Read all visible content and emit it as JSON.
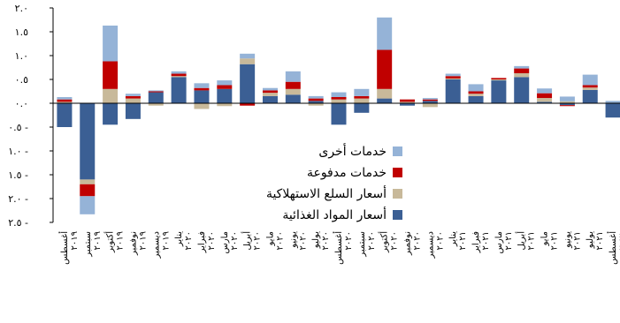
{
  "chart_data": {
    "type": "bar",
    "stacked": true,
    "categories": [
      [
        "أغسطس",
        "٢٠١٩"
      ],
      [
        "سبتمبر",
        "٢٠١٩"
      ],
      [
        "أكتوبر",
        "٢٠١٩"
      ],
      [
        "نوفمبر",
        "٢٠١٩"
      ],
      [
        "ديسمبر",
        "٢٠١٩"
      ],
      [
        "يناير",
        "٢٠٢٠"
      ],
      [
        "فبراير",
        "٢٠٢٠"
      ],
      [
        "مارس",
        "٢٠٢٠"
      ],
      [
        "أبريل",
        "٢٠٢٠"
      ],
      [
        "مايو",
        "٢٠٢٠"
      ],
      [
        "يونيو",
        "٢٠٢٠"
      ],
      [
        "يوليو",
        "٢٠٢٠"
      ],
      [
        "أغسطس",
        "٢٠٢٠"
      ],
      [
        "سبتمبر",
        "٢٠٢٠"
      ],
      [
        "أكتوبر",
        "٢٠٢٠"
      ],
      [
        "نوفمبر",
        "٢٠٢٠"
      ],
      [
        "ديسمبر",
        "٢٠٢٠"
      ],
      [
        "يناير",
        "٢٠٢١"
      ],
      [
        "فبراير",
        "٢٠٢١"
      ],
      [
        "مارس",
        "٢٠٢١"
      ],
      [
        "أبريل",
        "٢٠٢١"
      ],
      [
        "مايو",
        "٢٠٢١"
      ],
      [
        "يونيو",
        "٢٠٢١"
      ],
      [
        "يوليو",
        "٢٠٢١"
      ],
      [
        "أغسطس",
        "٢٠٢١"
      ]
    ],
    "series": [
      {
        "name": "أسعار المواد الغذائية",
        "color": "#3b5f94",
        "values": [
          -0.5,
          -1.6,
          -0.45,
          -0.33,
          0.23,
          0.55,
          0.27,
          0.3,
          0.82,
          0.15,
          0.18,
          0.05,
          -0.45,
          -0.2,
          0.1,
          -0.05,
          0.05,
          0.5,
          0.15,
          0.48,
          0.55,
          0.03,
          -0.04,
          0.28,
          -0.3
        ]
      },
      {
        "name": "أسعار السلع الاستهلاكية",
        "color": "#c8b99a",
        "values": [
          0.03,
          -0.1,
          0.3,
          0.1,
          -0.05,
          0.02,
          -0.12,
          -0.06,
          0.12,
          0.07,
          0.12,
          -0.05,
          0.08,
          0.1,
          0.2,
          0.03,
          -0.08,
          0.02,
          0.05,
          0.02,
          0.08,
          0.08,
          0.04,
          0.05,
          0.0
        ]
      },
      {
        "name": "خدمات مدفوعة",
        "color": "#c00000",
        "values": [
          0.05,
          -0.25,
          0.58,
          0.05,
          0.02,
          0.05,
          0.05,
          0.08,
          -0.05,
          0.05,
          0.15,
          0.05,
          0.05,
          0.05,
          0.82,
          0.05,
          0.03,
          0.05,
          0.05,
          0.03,
          0.1,
          0.1,
          -0.02,
          0.05,
          0.0
        ]
      },
      {
        "name": "خدمات أخرى",
        "color": "#95b3d7",
        "values": [
          0.05,
          -0.38,
          0.75,
          0.05,
          0.02,
          0.05,
          0.1,
          0.1,
          0.1,
          0.05,
          0.22,
          0.05,
          0.1,
          0.15,
          0.68,
          0.0,
          0.03,
          0.05,
          0.15,
          0.0,
          0.05,
          0.1,
          0.1,
          0.22,
          0.05
        ]
      }
    ],
    "yticks": [
      "٢.٠",
      "١.٥",
      "١.٠",
      "٠.٥",
      "٠.٠",
      "٠.٥ -",
      "١.٠ -",
      "١.٥ -",
      "٢.٠ -",
      "٢.٥ -"
    ],
    "ylim": [
      -2.5,
      2.0
    ],
    "legend": {
      "placement": "right",
      "order": [
        "خدمات أخرى",
        "خدمات مدفوعة",
        "أسعار السلع الاستهلاكية",
        "أسعار المواد الغذائية"
      ]
    },
    "title": "",
    "xlabel": "",
    "ylabel": ""
  }
}
